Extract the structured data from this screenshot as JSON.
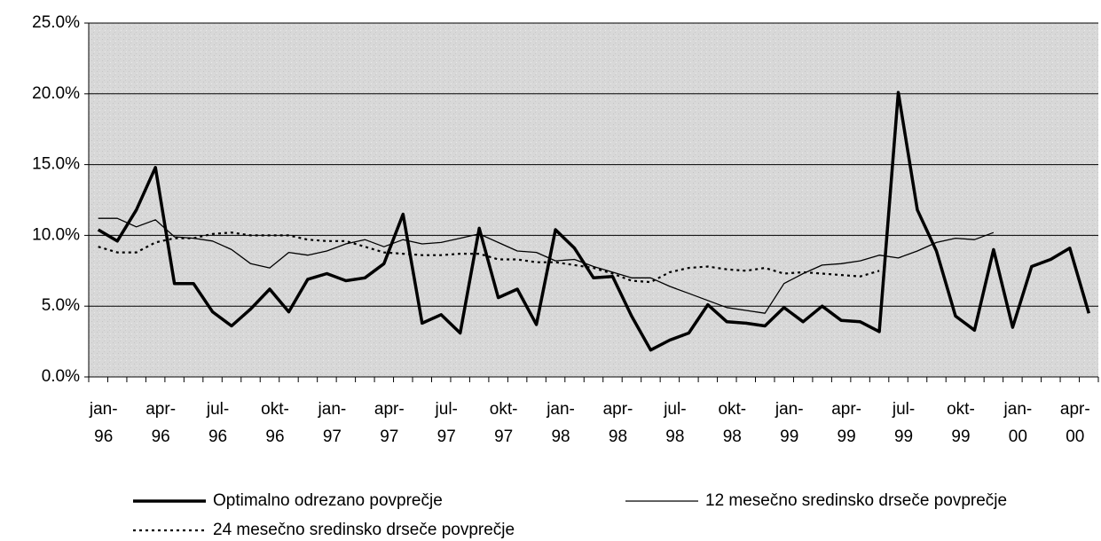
{
  "chart_data": {
    "type": "line",
    "categories": [
      "jan-96",
      null,
      null,
      "apr-96",
      null,
      null,
      "jul-96",
      null,
      null,
      "okt-96",
      null,
      null,
      "jan-97",
      null,
      null,
      "apr-97",
      null,
      null,
      "jul-97",
      null,
      null,
      "okt-97",
      null,
      null,
      "jan-98",
      null,
      null,
      "apr-98",
      null,
      null,
      "jul-98",
      null,
      null,
      "okt-98",
      null,
      null,
      "jan-99",
      null,
      null,
      "apr-99",
      null,
      null,
      "jul-99",
      null,
      null,
      "okt-99",
      null,
      null,
      "jan-00",
      null,
      null,
      "apr-00",
      null
    ],
    "ylim": [
      0,
      25
    ],
    "yticks": [
      {
        "value": 0,
        "label": "0.0%"
      },
      {
        "value": 5,
        "label": "5.0%"
      },
      {
        "value": 10,
        "label": "10.0%"
      },
      {
        "value": 15,
        "label": "15.0%"
      },
      {
        "value": 20,
        "label": "20.0%"
      },
      {
        "value": 25,
        "label": "25.0%"
      }
    ],
    "grid": true,
    "legend": "bottom",
    "series": [
      {
        "name": "Optimalno odrezano povprečje",
        "color": "#000000",
        "values": [
          10.4,
          9.6,
          11.8,
          14.8,
          6.6,
          6.6,
          4.6,
          3.6,
          4.8,
          6.2,
          4.6,
          6.9,
          7.3,
          6.8,
          7.0,
          8.0,
          11.5,
          3.8,
          4.4,
          3.1,
          10.5,
          5.6,
          6.2,
          3.7,
          10.4,
          9.1,
          7.0,
          7.1,
          4.3,
          1.9,
          2.6,
          3.1,
          5.1,
          3.9,
          3.8,
          3.6,
          4.9,
          3.9,
          5.0,
          4.0,
          3.9,
          3.2,
          20.1,
          11.8,
          8.9,
          4.3,
          3.3,
          9.0,
          3.5,
          7.8,
          8.3,
          9.1,
          4.5
        ]
      },
      {
        "name": "12 mesečno sredinsko drseče povprečje",
        "color": "#000000",
        "values": [
          11.2,
          11.2,
          10.6,
          11.1,
          9.9,
          9.8,
          9.6,
          9.0,
          8.0,
          7.7,
          8.8,
          8.6,
          8.9,
          9.4,
          9.7,
          9.2,
          9.7,
          9.4,
          9.5,
          9.8,
          10.1,
          9.5,
          8.9,
          8.8,
          8.2,
          8.3,
          7.8,
          7.4,
          7.0,
          7.0,
          6.4,
          5.9,
          5.4,
          4.9,
          4.7,
          4.5,
          6.6,
          7.3,
          7.9,
          8.0,
          8.2,
          8.6,
          8.4,
          8.9,
          9.5,
          9.8,
          9.7,
          10.2,
          null,
          null,
          null,
          null,
          null
        ]
      },
      {
        "name": "24 mesečno sredinsko drseče povprečje",
        "color": "#000000",
        "values": [
          9.2,
          8.8,
          8.8,
          9.5,
          9.8,
          9.8,
          10.1,
          10.2,
          10.0,
          10.0,
          10.0,
          9.7,
          9.6,
          9.6,
          9.2,
          8.8,
          8.7,
          8.6,
          8.6,
          8.7,
          8.7,
          8.3,
          8.3,
          8.1,
          8.1,
          7.9,
          7.7,
          7.3,
          6.8,
          6.7,
          7.4,
          7.7,
          7.8,
          7.6,
          7.5,
          7.7,
          7.3,
          7.4,
          7.3,
          7.2,
          7.1,
          7.5,
          null,
          null,
          null,
          null,
          null,
          null,
          null,
          null,
          null,
          null,
          null
        ]
      }
    ]
  }
}
